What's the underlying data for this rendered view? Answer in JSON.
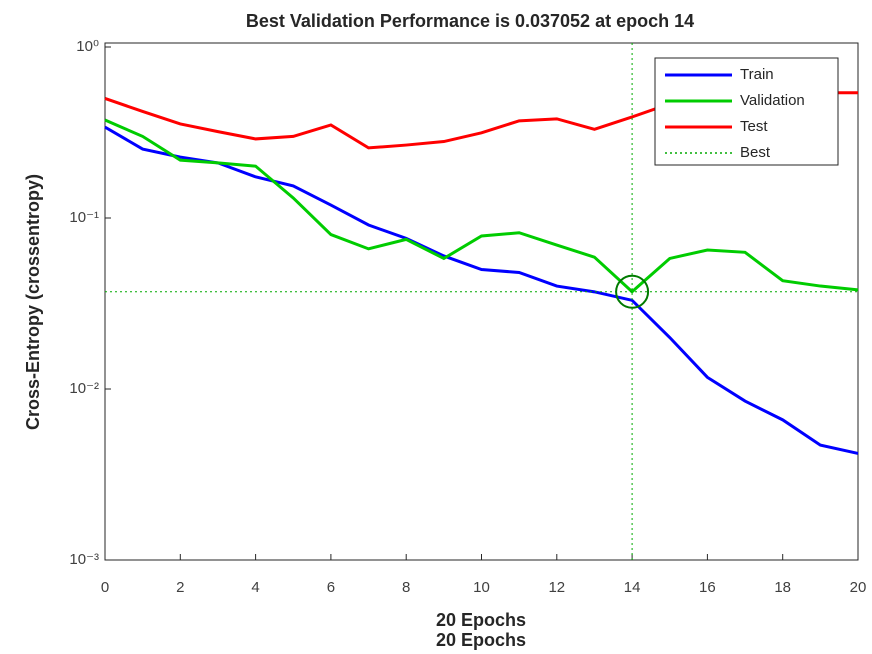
{
  "chart_data": {
    "type": "line",
    "title": "Best Validation Performance is 0.037052 at epoch 14",
    "xlabel": "20 Epochs",
    "xlabel_repeat": "20 Epochs",
    "ylabel": "Cross-Entropy  (crossentropy)",
    "log_y": true,
    "x": [
      0,
      1,
      2,
      3,
      4,
      5,
      6,
      7,
      8,
      9,
      10,
      11,
      12,
      13,
      14,
      15,
      16,
      17,
      18,
      19,
      20
    ],
    "series": [
      {
        "name": "Train",
        "color": "#0000ff",
        "style": "solid",
        "values": [
          0.34,
          0.253,
          0.227,
          0.21,
          0.174,
          0.154,
          0.119,
          0.091,
          0.076,
          0.06,
          0.05,
          0.048,
          0.04,
          0.037,
          0.033,
          0.02,
          0.0117,
          0.0085,
          0.0066,
          0.0047,
          0.0042
        ]
      },
      {
        "name": "Validation",
        "color": "#00cc00",
        "style": "solid",
        "values": [
          0.374,
          0.3,
          0.218,
          0.21,
          0.201,
          0.131,
          0.08,
          0.066,
          0.075,
          0.058,
          0.0785,
          0.082,
          0.0695,
          0.059,
          0.037052,
          0.058,
          0.065,
          0.063,
          0.043,
          0.04,
          0.038
        ]
      },
      {
        "name": "Test",
        "color": "#ff0000",
        "style": "solid",
        "values": [
          0.5,
          0.42,
          0.355,
          0.32,
          0.29,
          0.3,
          0.35,
          0.257,
          0.267,
          0.28,
          0.315,
          0.37,
          0.38,
          0.33,
          0.39,
          0.465,
          0.54,
          0.54,
          0.54,
          0.54,
          0.54
        ]
      },
      {
        "name": "Best",
        "color": "#00aa00",
        "style": "dotted",
        "x": 14,
        "value": 0.037052
      }
    ],
    "xlim": [
      0,
      20
    ],
    "xticks": [
      0,
      2,
      4,
      6,
      8,
      10,
      12,
      14,
      16,
      18,
      20
    ],
    "ylim": [
      0.001,
      1
    ],
    "yticks": [
      {
        "value": 0.001,
        "label": "10⁻³"
      },
      {
        "value": 0.01,
        "label": "10⁻²"
      },
      {
        "value": 0.1,
        "label": "10⁻¹"
      },
      {
        "value": 1,
        "label": "10⁰"
      }
    ],
    "legend": "upper right"
  }
}
